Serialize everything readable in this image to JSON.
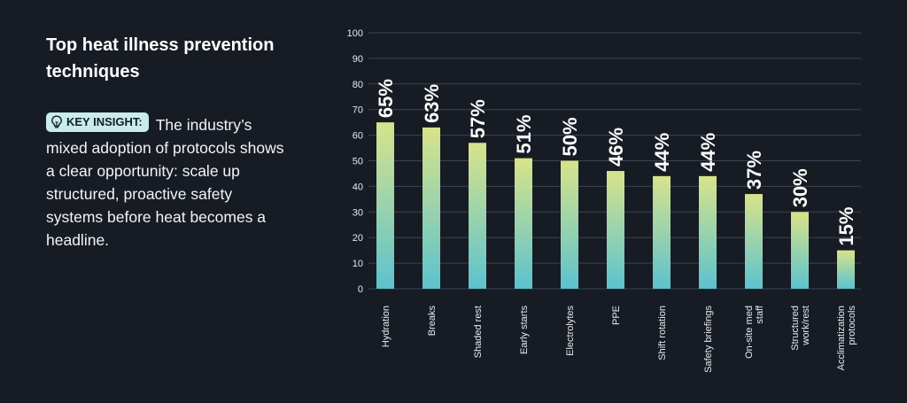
{
  "header": {
    "title": "Top heat illness prevention techniques"
  },
  "insight": {
    "badge_label": "KEY INSIGHT:",
    "badge_icon": "lightbulb-icon",
    "text": "The industry’s mixed adoption of protocols shows a clear opportunity: scale up structured, proactive safety systems before heat becomes a headline."
  },
  "colors": {
    "background": "#171c24",
    "bar_top": "#d8e38a",
    "bar_bottom": "#5cc2cf",
    "grid": "#3a4350",
    "badge_bg": "#c8ecee"
  },
  "chart_data": {
    "type": "bar",
    "title": "Top heat illness prevention techniques",
    "categories": [
      [
        "Hydration"
      ],
      [
        "Breaks"
      ],
      [
        "Shaded rest"
      ],
      [
        "Early starts"
      ],
      [
        "Electrolytes"
      ],
      [
        "PPE"
      ],
      [
        "Shift rotation"
      ],
      [
        "Safety briefings"
      ],
      [
        "On-site med",
        "staff"
      ],
      [
        "Structured",
        "work/rest"
      ],
      [
        "Acclimatization",
        "protocols"
      ]
    ],
    "values": [
      65,
      63,
      57,
      51,
      50,
      46,
      44,
      44,
      37,
      30,
      15
    ],
    "value_labels": [
      "65%",
      "63%",
      "57%",
      "51%",
      "50%",
      "46%",
      "44%",
      "44%",
      "37%",
      "30%",
      "15%"
    ],
    "yticks": [
      0,
      10,
      20,
      30,
      40,
      50,
      60,
      70,
      80,
      90,
      100
    ],
    "ylim": [
      0,
      100
    ],
    "xlabel": "",
    "ylabel": "",
    "grid": true
  }
}
